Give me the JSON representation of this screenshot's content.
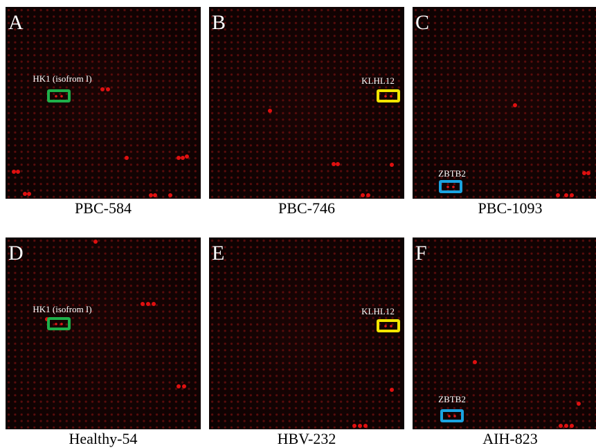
{
  "panels": [
    {
      "letter": "A",
      "caption": "PBC-584",
      "annotation": "HK1 (isofrom I)",
      "box_color": "#1fb04a"
    },
    {
      "letter": "B",
      "caption": "PBC-746",
      "annotation": "KLHL12",
      "box_color": "#f2e600"
    },
    {
      "letter": "C",
      "caption": "PBC-1093",
      "annotation": "ZBTB2",
      "box_color": "#1aa3e0"
    },
    {
      "letter": "D",
      "caption": "Healthy-54",
      "annotation": "HK1 (isofrom I)",
      "box_color": "#1fb04a"
    },
    {
      "letter": "E",
      "caption": "HBV-232",
      "annotation": "KLHL12",
      "box_color": "#f2e600"
    },
    {
      "letter": "F",
      "caption": "AIH-823",
      "annotation": "ZBTB2",
      "box_color": "#1aa3e0"
    }
  ]
}
